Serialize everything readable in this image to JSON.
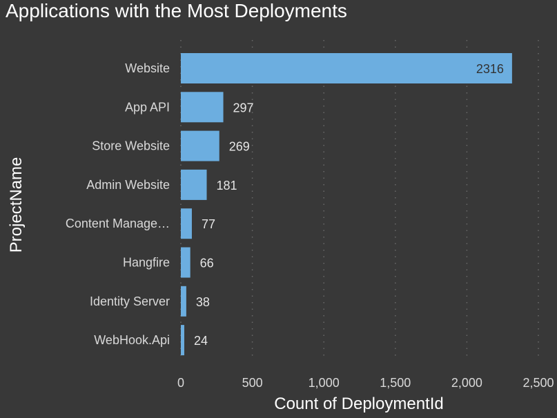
{
  "chart_data": {
    "type": "bar",
    "orientation": "horizontal",
    "title": "Applications with the Most Deployments",
    "xlabel": "Count of DeploymentId",
    "ylabel": "ProjectName",
    "categories": [
      "Website",
      "App API",
      "Store Website",
      "Admin Website",
      "Content Manage…",
      "Hangfire",
      "Identity Server",
      "WebHook.Api"
    ],
    "values": [
      2316,
      297,
      269,
      181,
      77,
      66,
      38,
      24
    ],
    "data_labels": [
      "2316",
      "297",
      "269",
      "181",
      "77",
      "66",
      "38",
      "24"
    ],
    "xlim": [
      0,
      2500
    ],
    "xticks": [
      0,
      500,
      1000,
      1500,
      2000,
      2500
    ],
    "xtick_labels": [
      "0",
      "500",
      "1,000",
      "1,500",
      "2,000",
      "2,500"
    ],
    "grid": true,
    "bar_color": "#6CAEE0"
  }
}
